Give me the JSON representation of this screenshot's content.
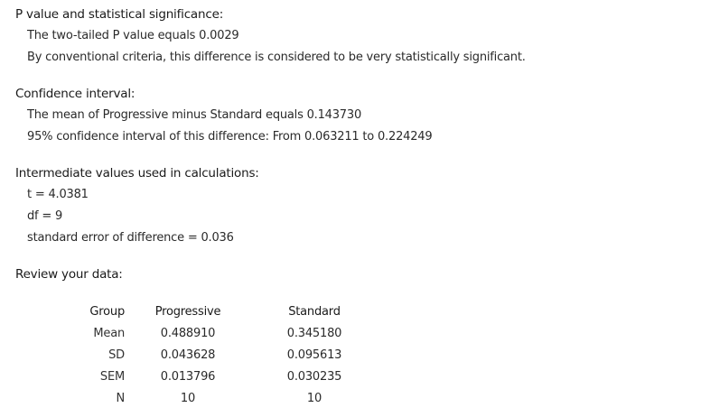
{
  "pvalue": {
    "heading": "P value and statistical significance:",
    "line1": "The two-tailed P value equals 0.0029",
    "line2": "By conventional criteria, this difference is considered to be very statistically significant."
  },
  "confidence": {
    "heading": "Confidence interval:",
    "line1": "The mean of Progressive minus Standard equals 0.143730",
    "line2": "95% confidence interval of this difference: From 0.063211 to 0.224249"
  },
  "intermediate": {
    "heading": "Intermediate values used in calculations:",
    "t": "t = 4.0381",
    "df": "df = 9",
    "se": "standard error of difference = 0.036"
  },
  "review": {
    "heading": "Review your data:",
    "columns": [
      "Group",
      "Progressive",
      "Standard"
    ],
    "rows": [
      {
        "label": "Mean",
        "progressive": "0.488910",
        "standard": "0.345180"
      },
      {
        "label": "SD",
        "progressive": "0.043628",
        "standard": "0.095613"
      },
      {
        "label": "SEM",
        "progressive": "0.013796",
        "standard": "0.030235"
      },
      {
        "label": "N",
        "progressive": "10",
        "standard": "10"
      }
    ]
  }
}
